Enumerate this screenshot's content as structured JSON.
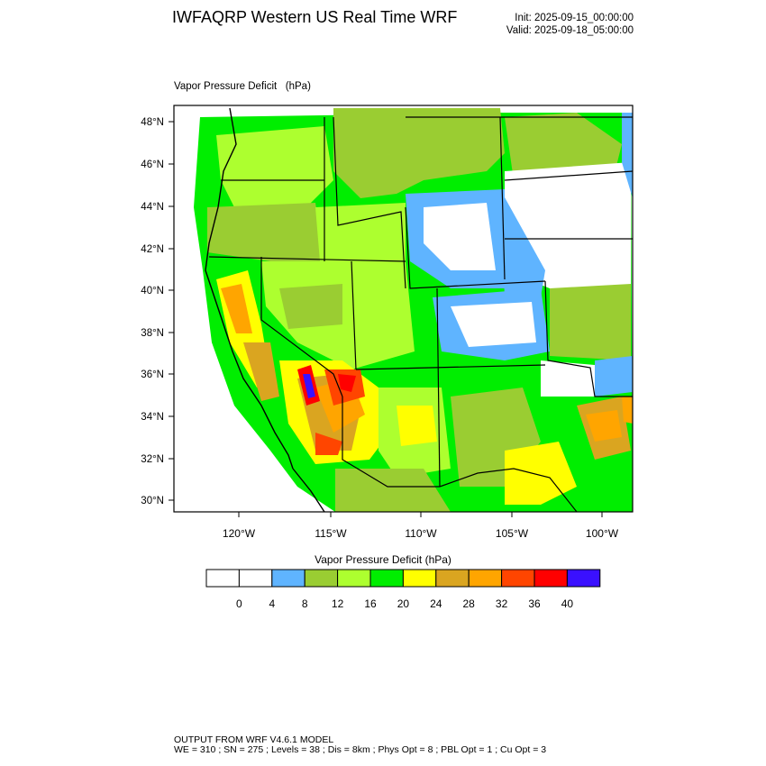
{
  "header": {
    "title": "IWFAQRP Western US Real Time WRF",
    "init": "Init: 2025-09-15_00:00:00",
    "valid": "Valid: 2025-09-18_05:00:00"
  },
  "map": {
    "field_title": "Vapor Pressure Deficit   (hPa)",
    "lat_labels": [
      "48°N",
      "46°N",
      "44°N",
      "42°N",
      "40°N",
      "38°N",
      "36°N",
      "34°N",
      "32°N",
      "30°N"
    ],
    "lon_labels": [
      "120°W",
      "115°W",
      "110°W",
      "105°W",
      "100°W"
    ],
    "colors": {
      "frame": "#000000",
      "state_border": "#000000",
      "county_border": "#000000"
    }
  },
  "colorbar": {
    "title": "Vapor Pressure Deficit  (hPa)",
    "labels": [
      "0",
      "4",
      "8",
      "12",
      "16",
      "20",
      "24",
      "28",
      "32",
      "36",
      "40"
    ],
    "colors": [
      "#ffffff",
      "#ffffff",
      "#5fb4ff",
      "#9acd32",
      "#adff2f",
      "#00ee00",
      "#ffff00",
      "#daa520",
      "#ffa500",
      "#ff4500",
      "#ff0000",
      "#3a10ff"
    ]
  },
  "footer": {
    "line1": "OUTPUT FROM WRF V4.6.1 MODEL",
    "line2": "WE = 310 ; SN = 275 ; Levels = 38 ; Dis = 8km ; Phys Opt = 8 ; PBL Opt = 1 ; Cu Opt = 3"
  }
}
